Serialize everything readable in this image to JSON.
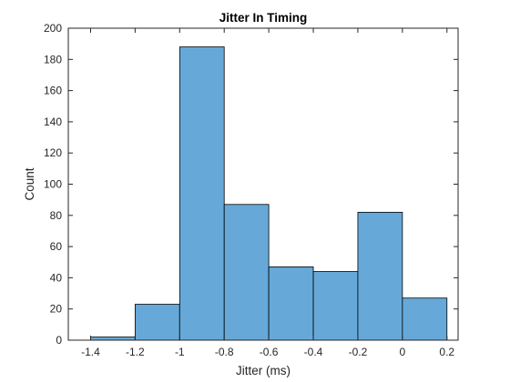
{
  "chart_data": {
    "type": "bar",
    "title": "Jitter In Timing",
    "xlabel": "Jitter (ms)",
    "ylabel": "Count",
    "bin_edges": [
      -1.4,
      -1.2,
      -1.0,
      -0.8,
      -0.6,
      -0.4,
      -0.2,
      0.0,
      0.2
    ],
    "values": [
      2,
      23,
      188,
      87,
      47,
      44,
      82,
      27
    ],
    "xlim": [
      -1.5,
      0.25
    ],
    "ylim": [
      0,
      200
    ],
    "xticks": [
      -1.4,
      -1.2,
      -1,
      -0.8,
      -0.6,
      -0.4,
      -0.2,
      0,
      0.2
    ],
    "xtick_labels": [
      "-1.4",
      "-1.2",
      "-1",
      "-0.8",
      "-0.6",
      "-0.4",
      "-0.2",
      "0",
      "0.2"
    ],
    "yticks": [
      0,
      20,
      40,
      60,
      80,
      100,
      120,
      140,
      160,
      180,
      200
    ],
    "ytick_labels": [
      "0",
      "20",
      "40",
      "60",
      "80",
      "100",
      "120",
      "140",
      "160",
      "180",
      "200"
    ],
    "grid": false,
    "bar_color": "#66A9D8",
    "edge_color": "#000000"
  }
}
